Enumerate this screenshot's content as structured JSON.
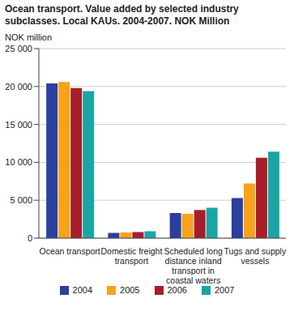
{
  "chart_data": {
    "type": "bar",
    "title": "Ocean transport. Value added by selected industry subclasses. Local KAUs. 2004-2007. NOK Million",
    "y_label": "NOK million",
    "categories": [
      "Ocean transport",
      "Domestic freight transport",
      "Scheduled long distance inland transport in coastal waters",
      "Tugs and supply vessels"
    ],
    "series": [
      {
        "name": "2004",
        "color": "#2b3f9e",
        "values": [
          20400,
          700,
          3300,
          5300
        ]
      },
      {
        "name": "2005",
        "color": "#f7a21b",
        "values": [
          20600,
          750,
          3200,
          7200
        ]
      },
      {
        "name": "2006",
        "color": "#a81d2a",
        "values": [
          19800,
          800,
          3700,
          10600
        ]
      },
      {
        "name": "2007",
        "color": "#1aa5a5",
        "values": [
          19400,
          900,
          4000,
          11400
        ]
      }
    ],
    "ylim": [
      0,
      25000
    ],
    "yticks": [
      0,
      {
        "value": 5000,
        "label": "5 000"
      },
      {
        "value": 10000,
        "label": "10 000"
      },
      {
        "value": 15000,
        "label": "15 000"
      },
      {
        "value": 20000,
        "label": "20 000"
      },
      {
        "value": 25000,
        "label": "25 000"
      }
    ],
    "grid": true,
    "legend": "bottom"
  }
}
